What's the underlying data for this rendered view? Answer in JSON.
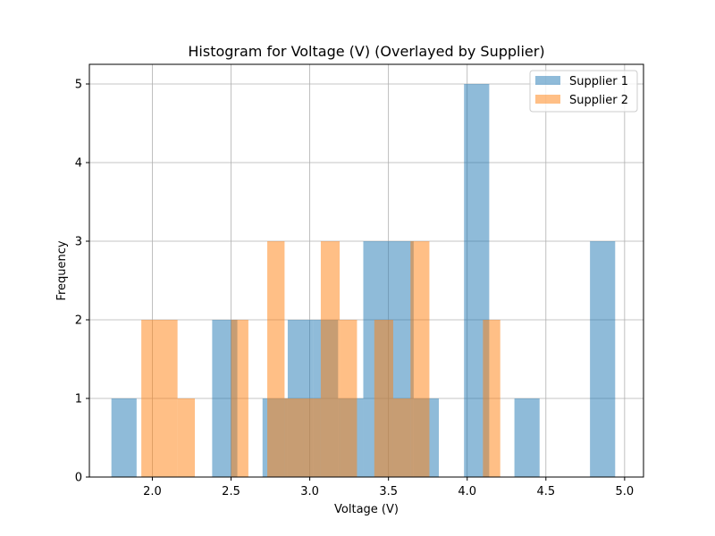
{
  "chart_data": {
    "type": "bar",
    "title": "Histogram for Voltage (V) (Overlayed by Supplier)",
    "xlabel": "Voltage (V)",
    "ylabel": "Frequency",
    "xlim": [
      1.6,
      5.12
    ],
    "ylim": [
      0,
      5.25
    ],
    "xticks": [
      2.0,
      2.5,
      3.0,
      3.5,
      4.0,
      4.5,
      5.0
    ],
    "xtick_labels": [
      "2.0",
      "2.5",
      "3.0",
      "3.5",
      "4.0",
      "4.5",
      "5.0"
    ],
    "yticks": [
      0,
      1,
      2,
      3,
      4,
      5
    ],
    "ytick_labels": [
      "0",
      "1",
      "2",
      "3",
      "4",
      "5"
    ],
    "grid": true,
    "legend_position": "top-right",
    "series": [
      {
        "name": "Supplier 1",
        "color": "#1f77b4",
        "opacity": 0.5,
        "bins": [
          {
            "x0": 1.74,
            "x1": 1.9,
            "count": 1
          },
          {
            "x0": 2.38,
            "x1": 2.54,
            "count": 2
          },
          {
            "x0": 2.7,
            "x1": 2.86,
            "count": 1
          },
          {
            "x0": 2.86,
            "x1": 3.02,
            "count": 2
          },
          {
            "x0": 3.02,
            "x1": 3.18,
            "count": 2
          },
          {
            "x0": 3.18,
            "x1": 3.34,
            "count": 1
          },
          {
            "x0": 3.34,
            "x1": 3.5,
            "count": 3
          },
          {
            "x0": 3.5,
            "x1": 3.66,
            "count": 3
          },
          {
            "x0": 3.66,
            "x1": 3.82,
            "count": 1
          },
          {
            "x0": 3.98,
            "x1": 4.14,
            "count": 5
          },
          {
            "x0": 4.3,
            "x1": 4.46,
            "count": 1
          },
          {
            "x0": 4.78,
            "x1": 4.94,
            "count": 3
          }
        ]
      },
      {
        "name": "Supplier 2",
        "color": "#ff7f0e",
        "opacity": 0.5,
        "bins": [
          {
            "x0": 1.93,
            "x1": 2.04,
            "count": 2
          },
          {
            "x0": 2.04,
            "x1": 2.16,
            "count": 2
          },
          {
            "x0": 2.16,
            "x1": 2.27,
            "count": 1
          },
          {
            "x0": 2.5,
            "x1": 2.61,
            "count": 2
          },
          {
            "x0": 2.73,
            "x1": 2.84,
            "count": 3
          },
          {
            "x0": 2.84,
            "x1": 2.96,
            "count": 1
          },
          {
            "x0": 2.96,
            "x1": 3.07,
            "count": 1
          },
          {
            "x0": 3.07,
            "x1": 3.19,
            "count": 3
          },
          {
            "x0": 3.19,
            "x1": 3.3,
            "count": 2
          },
          {
            "x0": 3.41,
            "x1": 3.53,
            "count": 2
          },
          {
            "x0": 3.53,
            "x1": 3.64,
            "count": 1
          },
          {
            "x0": 3.64,
            "x1": 3.76,
            "count": 3
          },
          {
            "x0": 4.1,
            "x1": 4.21,
            "count": 2
          }
        ]
      }
    ]
  }
}
